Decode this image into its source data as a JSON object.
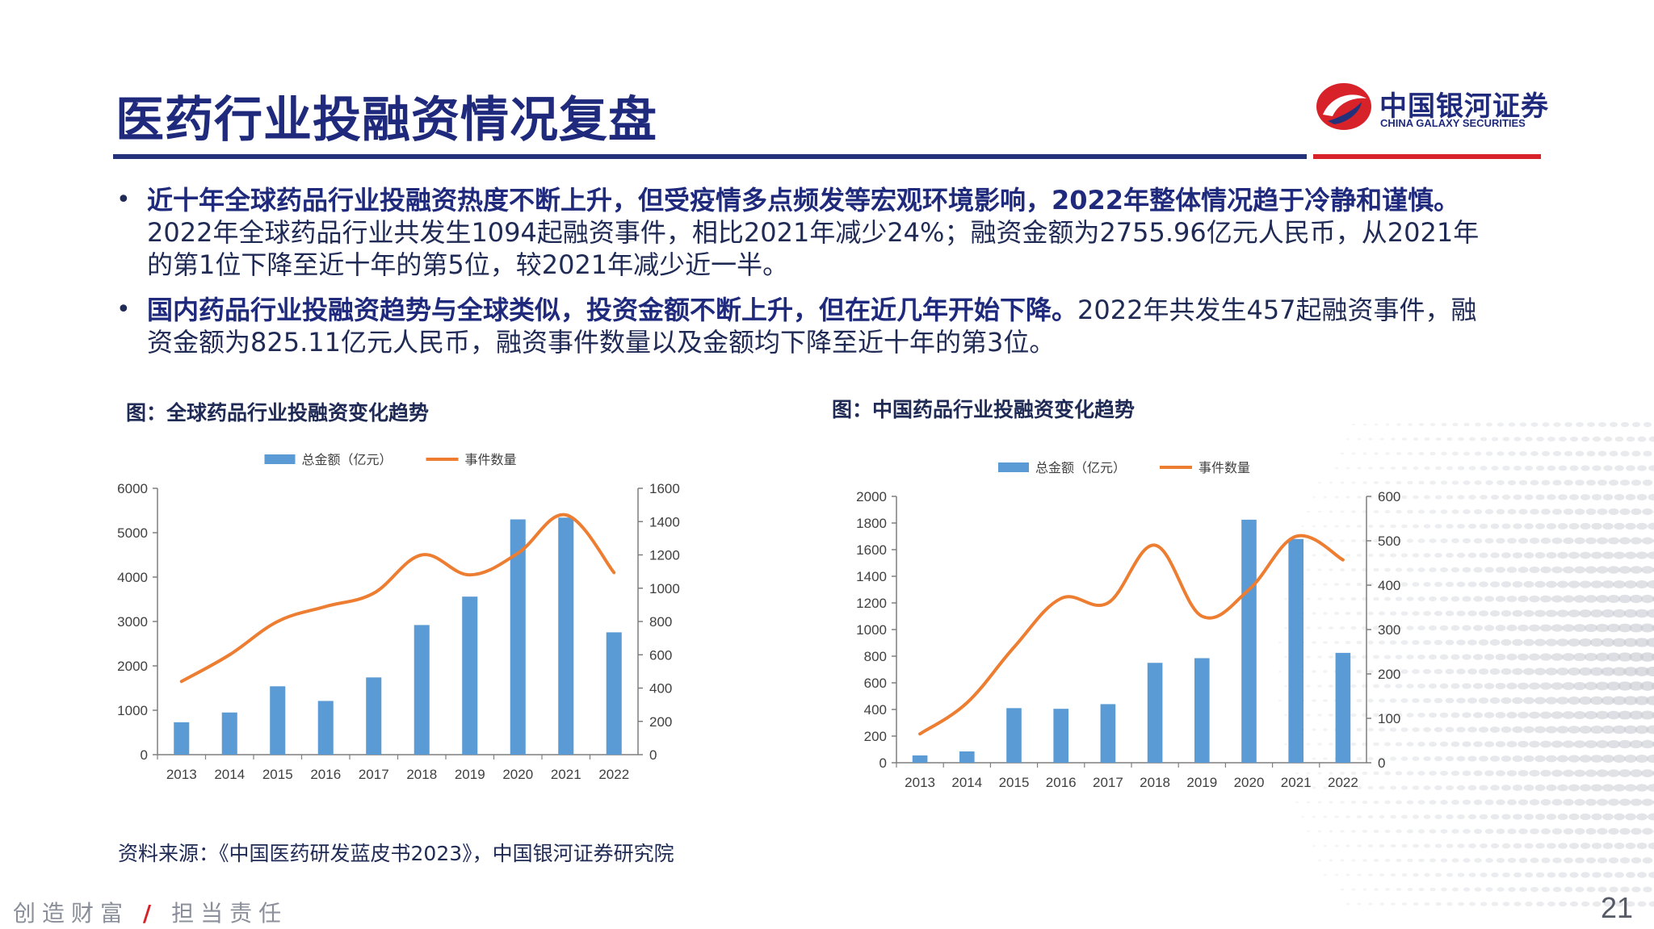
{
  "page": {
    "title": "医药行业投融资情况复盘",
    "logo_cn": "中国银河证券",
    "logo_en": "CHINA GALAXY SECURITIES",
    "bullets": [
      {
        "bold": "近十年全球药品行业投融资热度不断上升，但受疫情多点频发等宏观环境影响，2022年整体情况趋于冷静和谨慎。",
        "text": "2022年全球药品行业共发生1094起融资事件，相比2021年减少24%；融资金额为2755.96亿元人民币，从2021年的第1位下降至近十年的第5位，较2021年减少近一半。"
      },
      {
        "bold": "国内药品行业投融资趋势与全球类似，投资金额不断上升，但在近几年开始下降。",
        "text": "2022年共发生457起融资事件，融资金额为825.11亿元人民币，融资事件数量以及金额均下降至近十年的第3位。"
      }
    ],
    "fig1_title": "图：全球药品行业投融资变化趋势",
    "fig2_title": "图：中国药品行业投融资变化趋势",
    "source": "资料来源：《中国医药研发蓝皮书2023》，中国银河证券研究院",
    "slogan_left": "创造财富",
    "slogan_sep": "/",
    "slogan_right": "担当责任",
    "page_number": "21",
    "colors": {
      "bar": "#5b9bd5",
      "line": "#ed7d31",
      "navy": "#1f2a7c",
      "red": "#d8222a"
    }
  },
  "chart_data": [
    {
      "type": "bar",
      "title": "",
      "categories": [
        "2013",
        "2014",
        "2015",
        "2016",
        "2017",
        "2018",
        "2019",
        "2020",
        "2021",
        "2022"
      ],
      "series": [
        {
          "name": "总金额（亿元）",
          "type": "bar",
          "axis": "left",
          "values": [
            730,
            950,
            1540,
            1210,
            1740,
            2920,
            3560,
            5300,
            5340,
            2756
          ]
        },
        {
          "name": "事件数量",
          "type": "line",
          "axis": "right",
          "values": [
            440,
            600,
            800,
            890,
            970,
            1200,
            1080,
            1210,
            1440,
            1094
          ]
        }
      ],
      "y_left": {
        "min": 0,
        "max": 6000,
        "ticks": [
          0,
          1000,
          2000,
          3000,
          4000,
          5000,
          6000
        ]
      },
      "y_right": {
        "min": 0,
        "max": 1600,
        "ticks": [
          0,
          200,
          400,
          600,
          800,
          1000,
          1200,
          1400,
          1600
        ]
      },
      "legend": "top-center",
      "grid": false
    },
    {
      "type": "bar",
      "title": "",
      "categories": [
        "2013",
        "2014",
        "2015",
        "2016",
        "2017",
        "2018",
        "2019",
        "2020",
        "2021",
        "2022"
      ],
      "series": [
        {
          "name": "总金额（亿元）",
          "type": "bar",
          "axis": "left",
          "values": [
            55,
            85,
            410,
            405,
            440,
            750,
            785,
            1825,
            1680,
            825
          ]
        },
        {
          "name": "事件数量",
          "type": "line",
          "axis": "right",
          "values": [
            65,
            135,
            260,
            370,
            360,
            490,
            330,
            390,
            510,
            457
          ]
        }
      ],
      "y_left": {
        "min": 0,
        "max": 2000,
        "ticks": [
          0,
          200,
          400,
          600,
          800,
          1000,
          1200,
          1400,
          1600,
          1800,
          2000
        ]
      },
      "y_right": {
        "min": 0,
        "max": 600,
        "ticks": [
          0,
          100,
          200,
          300,
          400,
          500,
          600
        ]
      },
      "legend": "top-center",
      "grid": false
    }
  ]
}
